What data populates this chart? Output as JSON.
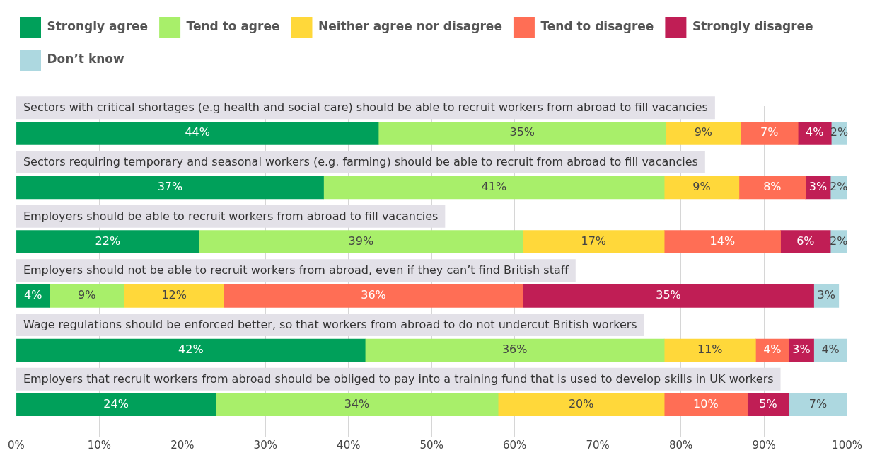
{
  "chart_data": {
    "type": "bar",
    "orientation": "horizontal",
    "stacked": true,
    "grid": "x",
    "legend": "top left",
    "categories": [
      "Sectors with critical shortages (e.g health and social care) should be able to recruit workers from abroad to fill vacancies",
      "Sectors requiring temporary and seasonal workers (e.g. farming) should be able to recruit from abroad to fill vacancies",
      "Employers should be able to recruit workers from abroad to fill vacancies",
      "Employers should not be able to recruit workers from abroad, even if they can’t find British staff",
      "Wage regulations should be enforced better, so that workers from abroad to do not undercut British workers",
      "Employers that recruit workers from abroad should be obliged to pay into a training fund that is used to develop skills in UK workers"
    ],
    "series": [
      {
        "name": "Strongly agree",
        "color": "#00a05a",
        "values": [
          43.6,
          37,
          22,
          4,
          42,
          24
        ],
        "value_labels": [
          "44%",
          "37%",
          "22%",
          "4%",
          "42%",
          "24%"
        ]
      },
      {
        "name": "Tend to agree",
        "color": "#a8ef6a",
        "values": [
          34.6,
          41,
          39,
          9,
          36,
          34
        ],
        "value_labels": [
          "35%",
          "41%",
          "39%",
          "9%",
          "36%",
          "34%"
        ]
      },
      {
        "name": "Neither agree nor disagree",
        "color": "#ffd83a",
        "values": [
          9,
          9,
          17,
          12,
          11,
          20
        ],
        "value_labels": [
          "9%",
          "9%",
          "17%",
          "12%",
          "11%",
          "20%"
        ]
      },
      {
        "name": "Tend to disagree",
        "color": "#ff6e55",
        "values": [
          6.9,
          8,
          14,
          36,
          4,
          10
        ],
        "value_labels": [
          "7%",
          "8%",
          "14%",
          "36%",
          "4%",
          "10%"
        ]
      },
      {
        "name": "Strongly disagree",
        "color": "#c01e55",
        "values": [
          4,
          3,
          6,
          35,
          3,
          5
        ],
        "value_labels": [
          "4%",
          "3%",
          "6%",
          "35%",
          "3%",
          "5%"
        ]
      },
      {
        "name": "Don’t know",
        "color": "#add8e0",
        "values": [
          1.9,
          2,
          2,
          3,
          4,
          7
        ],
        "value_labels": [
          "2%",
          "2%",
          "2%",
          "3%",
          "4%",
          "7%"
        ]
      }
    ],
    "xlim": [
      0,
      100
    ],
    "xticks": [
      {
        "value": 0,
        "label": "0%"
      },
      {
        "value": 10,
        "label": "10%"
      },
      {
        "value": 20,
        "label": "20%"
      },
      {
        "value": 30,
        "label": "30%"
      },
      {
        "value": 40,
        "label": "40%"
      },
      {
        "value": 50,
        "label": "50%"
      },
      {
        "value": 60,
        "label": "60%"
      },
      {
        "value": 70,
        "label": "70%"
      },
      {
        "value": 80,
        "label": "80%"
      },
      {
        "value": 90,
        "label": "90%"
      },
      {
        "value": 100,
        "label": "100%"
      }
    ]
  }
}
